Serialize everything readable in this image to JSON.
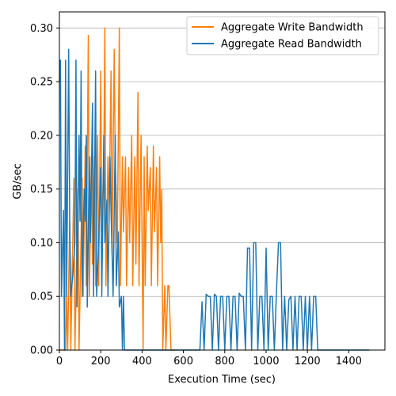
{
  "chart_data": {
    "type": "line",
    "title": "",
    "xlabel": "Execution Time (sec)",
    "ylabel": "GB/sec",
    "xlim": [
      0,
      1575
    ],
    "ylim": [
      0.0,
      0.315
    ],
    "x_ticks": [
      0,
      200,
      400,
      600,
      800,
      1000,
      1200,
      1400
    ],
    "y_ticks": [
      0.0,
      0.05,
      0.1,
      0.15,
      0.2,
      0.25,
      0.3
    ],
    "x_tick_labels": [
      "0",
      "200",
      "400",
      "600",
      "800",
      "1000",
      "1200",
      "1400"
    ],
    "y_tick_labels": [
      "0.00",
      "0.05",
      "0.10",
      "0.15",
      "0.20",
      "0.25",
      "0.30"
    ],
    "grid": "horizontal",
    "legend_position": "top-right",
    "colors": {
      "write": "#ff7f0e",
      "read": "#1f77b4",
      "grid": "#b0b0b0",
      "axis": "#000000"
    },
    "series": [
      {
        "name": "Aggregate Write Bandwidth",
        "color": "#ff7f0e",
        "points": [
          [
            0,
            0
          ],
          [
            10,
            0
          ],
          [
            30,
            0
          ],
          [
            35,
            0.05
          ],
          [
            40,
            0
          ],
          [
            50,
            0.12
          ],
          [
            55,
            0
          ],
          [
            70,
            0.16
          ],
          [
            75,
            0
          ],
          [
            90,
            0.15
          ],
          [
            95,
            0
          ],
          [
            110,
            0.16
          ],
          [
            115,
            0.05
          ],
          [
            125,
            0.19
          ],
          [
            130,
            0.06
          ],
          [
            140,
            0.293
          ],
          [
            145,
            0.05
          ],
          [
            155,
            0.18
          ],
          [
            160,
            0.08
          ],
          [
            170,
            0.18
          ],
          [
            175,
            0.06
          ],
          [
            185,
            0.2
          ],
          [
            190,
            0.06
          ],
          [
            200,
            0.26
          ],
          [
            205,
            0.11
          ],
          [
            215,
            0.18
          ],
          [
            220,
            0.3
          ],
          [
            225,
            0.06
          ],
          [
            235,
            0.18
          ],
          [
            240,
            0.12
          ],
          [
            250,
            0.26
          ],
          [
            255,
            0.09
          ],
          [
            265,
            0.28
          ],
          [
            270,
            0.18
          ],
          [
            280,
            0.1
          ],
          [
            290,
            0.3
          ],
          [
            295,
            0.06
          ],
          [
            305,
            0.18
          ],
          [
            310,
            0.11
          ],
          [
            320,
            0.18
          ],
          [
            325,
            0.06
          ],
          [
            335,
            0.17
          ],
          [
            340,
            0.1
          ],
          [
            350,
            0.2
          ],
          [
            355,
            0.06
          ],
          [
            365,
            0.18
          ],
          [
            370,
            0.08
          ],
          [
            380,
            0.24
          ],
          [
            385,
            0.06
          ],
          [
            395,
            0.2
          ],
          [
            400,
            0.1
          ],
          [
            405,
            0.0
          ],
          [
            410,
            0.18
          ],
          [
            415,
            0.06
          ],
          [
            425,
            0.19
          ],
          [
            430,
            0.13
          ],
          [
            440,
            0.17
          ],
          [
            445,
            0.06
          ],
          [
            455,
            0.19
          ],
          [
            460,
            0.11
          ],
          [
            470,
            0.17
          ],
          [
            475,
            0.06
          ],
          [
            485,
            0.18
          ],
          [
            490,
            0.1
          ],
          [
            495,
            0.15
          ],
          [
            500,
            0.0
          ],
          [
            510,
            0.06
          ],
          [
            515,
            0.0
          ],
          [
            525,
            0.06
          ],
          [
            530,
            0.06
          ],
          [
            540,
            0.0
          ],
          [
            560,
            0.0
          ]
        ]
      },
      {
        "name": "Aggregate Read Bandwidth",
        "color": "#1f77b4",
        "points": [
          [
            0,
            0.25
          ],
          [
            5,
            0.27
          ],
          [
            10,
            0.05
          ],
          [
            20,
            0.13
          ],
          [
            25,
            0.0
          ],
          [
            30,
            0.27
          ],
          [
            35,
            0.05
          ],
          [
            45,
            0.28
          ],
          [
            50,
            0.12
          ],
          [
            55,
            0.05
          ],
          [
            65,
            0.07
          ],
          [
            75,
            0.1
          ],
          [
            80,
            0.27
          ],
          [
            85,
            0.04
          ],
          [
            95,
            0.2
          ],
          [
            100,
            0.12
          ],
          [
            105,
            0.26
          ],
          [
            110,
            0.05
          ],
          [
            120,
            0.15
          ],
          [
            125,
            0.12
          ],
          [
            130,
            0.2
          ],
          [
            135,
            0.04
          ],
          [
            145,
            0.18
          ],
          [
            150,
            0.1
          ],
          [
            160,
            0.23
          ],
          [
            165,
            0.05
          ],
          [
            175,
            0.26
          ],
          [
            180,
            0.05
          ],
          [
            190,
            0.1
          ],
          [
            200,
            0.17
          ],
          [
            205,
            0.05
          ],
          [
            215,
            0.2
          ],
          [
            220,
            0.1
          ],
          [
            230,
            0.14
          ],
          [
            235,
            0.05
          ],
          [
            245,
            0.18
          ],
          [
            250,
            0.13
          ],
          [
            260,
            0.05
          ],
          [
            270,
            0.2
          ],
          [
            275,
            0.06
          ],
          [
            285,
            0.11
          ],
          [
            290,
            0.04
          ],
          [
            300,
            0.05
          ],
          [
            305,
            0.0
          ],
          [
            310,
            0.05
          ],
          [
            315,
            0.0
          ],
          [
            320,
            0.0
          ],
          [
            680,
            0.0
          ],
          [
            690,
            0.045
          ],
          [
            700,
            0.0
          ],
          [
            710,
            0.052
          ],
          [
            720,
            0.05
          ],
          [
            730,
            0.05
          ],
          [
            740,
            0.0
          ],
          [
            750,
            0.052
          ],
          [
            760,
            0.05
          ],
          [
            770,
            0.0
          ],
          [
            780,
            0.05
          ],
          [
            790,
            0.05
          ],
          [
            800,
            0.0
          ],
          [
            810,
            0.05
          ],
          [
            820,
            0.05
          ],
          [
            830,
            0.0
          ],
          [
            840,
            0.05
          ],
          [
            850,
            0.05
          ],
          [
            860,
            0.0
          ],
          [
            870,
            0.053
          ],
          [
            880,
            0.05
          ],
          [
            890,
            0.05
          ],
          [
            900,
            0.0
          ],
          [
            910,
            0.095
          ],
          [
            920,
            0.095
          ],
          [
            930,
            0.0
          ],
          [
            940,
            0.1
          ],
          [
            950,
            0.1
          ],
          [
            960,
            0.0
          ],
          [
            970,
            0.05
          ],
          [
            980,
            0.05
          ],
          [
            990,
            0.0
          ],
          [
            1000,
            0.095
          ],
          [
            1010,
            0.0
          ],
          [
            1020,
            0.05
          ],
          [
            1030,
            0.05
          ],
          [
            1040,
            0.0
          ],
          [
            1050,
            0.053
          ],
          [
            1060,
            0.1
          ],
          [
            1070,
            0.1
          ],
          [
            1080,
            0.0
          ],
          [
            1090,
            0.05
          ],
          [
            1100,
            0.0
          ],
          [
            1110,
            0.047
          ],
          [
            1120,
            0.05
          ],
          [
            1130,
            0.0
          ],
          [
            1140,
            0.05
          ],
          [
            1150,
            0.0
          ],
          [
            1160,
            0.05
          ],
          [
            1170,
            0.05
          ],
          [
            1180,
            0.0
          ],
          [
            1190,
            0.05
          ],
          [
            1200,
            0.0
          ],
          [
            1210,
            0.05
          ],
          [
            1220,
            0.0
          ],
          [
            1230,
            0.05
          ],
          [
            1240,
            0.05
          ],
          [
            1250,
            0.0
          ],
          [
            1500,
            0.0
          ]
        ]
      }
    ]
  }
}
